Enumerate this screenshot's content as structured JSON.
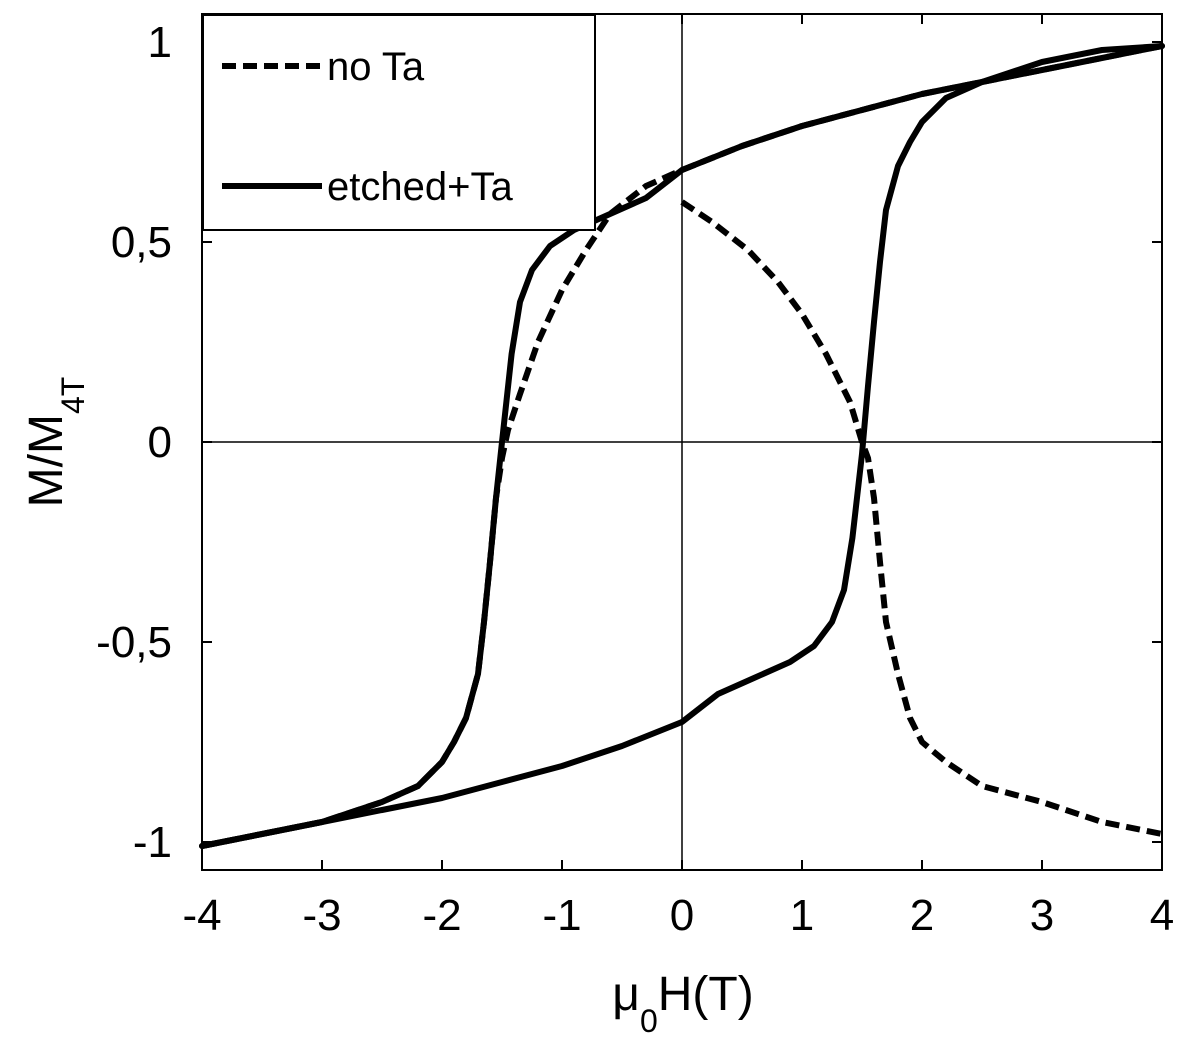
{
  "chart_data": {
    "type": "line",
    "xlabel": {
      "main": "μ",
      "sub": "0",
      "rest": "H(T)"
    },
    "ylabel": {
      "main": "M/M",
      "sub": "4T"
    },
    "xlim": [
      -4,
      4
    ],
    "ylim": [
      -1.07,
      1.07
    ],
    "xticks": [
      -4,
      -3,
      -2,
      -1,
      0,
      1,
      2,
      3,
      4
    ],
    "xtick_labels": [
      "-4",
      "-3",
      "-2",
      "-1",
      "0",
      "1",
      "2",
      "3",
      "4"
    ],
    "yticks": [
      1,
      0.5,
      0,
      -0.5,
      -1
    ],
    "ytick_labels": [
      "1",
      "0,5",
      "0",
      "-0,5",
      "-1"
    ],
    "zero_lines": true,
    "grid": false,
    "legend": {
      "placement": "top-left"
    },
    "series": [
      {
        "name": "no Ta",
        "style": "dashed",
        "color": "#000000",
        "segments": [
          {
            "x": [
              4.0,
              3.5,
              3.0,
              2.5,
              2.0,
              1.5,
              1.0,
              0.5,
              0.0,
              -0.3,
              -0.6,
              -0.8,
              -1.0,
              -1.2,
              -1.35,
              -1.45,
              -1.5,
              -1.55,
              -1.6,
              -1.65,
              -1.7,
              -1.8,
              -1.9,
              -2.0,
              -2.2,
              -2.5,
              -3.0,
              -3.5,
              -4.0
            ],
            "y": [
              0.99,
              0.96,
              0.93,
              0.9,
              0.87,
              0.83,
              0.79,
              0.74,
              0.68,
              0.64,
              0.57,
              0.48,
              0.38,
              0.25,
              0.12,
              0.03,
              -0.04,
              -0.14,
              -0.3,
              -0.45,
              -0.58,
              -0.69,
              -0.75,
              -0.8,
              -0.86,
              -0.9,
              -0.95,
              -0.98,
              -1.01
            ]
          },
          {
            "x": [
              0.0,
              0.0,
              0.25,
              0.55,
              0.8,
              1.0,
              1.2,
              1.4,
              1.5,
              1.55,
              1.6,
              1.65,
              1.7,
              1.8,
              1.9,
              2.0,
              2.2,
              2.5,
              3.0,
              3.5,
              4.0
            ],
            "y": [
              0.6,
              0.6,
              0.55,
              0.48,
              0.4,
              0.32,
              0.22,
              0.1,
              0.0,
              -0.04,
              -0.14,
              -0.3,
              -0.45,
              -0.58,
              -0.69,
              -0.75,
              -0.8,
              -0.86,
              -0.9,
              -0.95,
              -0.98
            ]
          }
        ]
      },
      {
        "name": "etched+Ta",
        "style": "solid",
        "color": "#000000",
        "segments": [
          {
            "x": [
              4.0,
              3.5,
              3.0,
              2.5,
              2.0,
              1.5,
              1.0,
              0.5,
              0.0,
              -0.3,
              -0.6,
              -0.9,
              -1.1,
              -1.25,
              -1.35,
              -1.42,
              -1.5,
              -1.55,
              -1.6,
              -1.65,
              -1.7,
              -1.8,
              -1.9,
              -2.0,
              -2.2,
              -2.5,
              -3.0,
              -3.5,
              -4.0
            ],
            "y": [
              0.99,
              0.96,
              0.93,
              0.9,
              0.87,
              0.83,
              0.79,
              0.74,
              0.68,
              0.61,
              0.57,
              0.53,
              0.49,
              0.43,
              0.35,
              0.22,
              0.0,
              -0.14,
              -0.3,
              -0.45,
              -0.58,
              -0.69,
              -0.75,
              -0.8,
              -0.86,
              -0.9,
              -0.95,
              -0.98,
              -1.01
            ]
          },
          {
            "x": [
              -4.0,
              -3.5,
              -3.0,
              -2.5,
              -2.0,
              -1.5,
              -1.0,
              -0.5,
              0.0,
              0.3,
              0.6,
              0.9,
              1.1,
              1.25,
              1.35,
              1.42,
              1.5,
              1.55,
              1.6,
              1.65,
              1.7,
              1.8,
              1.9,
              2.0,
              2.2,
              2.5,
              3.0,
              3.5,
              4.0
            ],
            "y": [
              -1.01,
              -0.98,
              -0.95,
              -0.92,
              -0.89,
              -0.85,
              -0.81,
              -0.76,
              -0.7,
              -0.63,
              -0.59,
              -0.55,
              -0.51,
              -0.45,
              -0.37,
              -0.24,
              -0.03,
              0.14,
              0.3,
              0.45,
              0.58,
              0.69,
              0.75,
              0.8,
              0.86,
              0.9,
              0.95,
              0.98,
              0.99
            ]
          }
        ]
      }
    ]
  }
}
